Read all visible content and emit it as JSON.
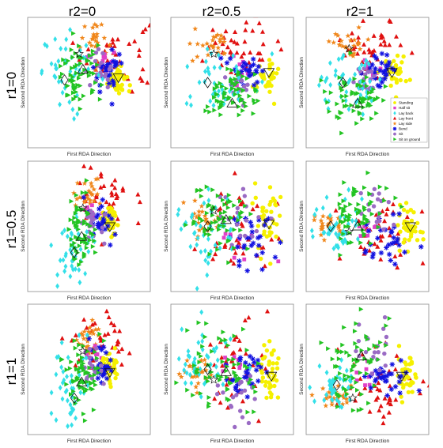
{
  "chart_data": {
    "type": "scatter",
    "column_titles": [
      "r2=0",
      "r2=0.5",
      "r2=1"
    ],
    "row_titles": [
      "r1=0",
      "r1=0.5",
      "r1=1"
    ],
    "xlabel": "First RDA Direction",
    "ylabel": "Second RDA Direction",
    "grid": false,
    "legend": {
      "panel": "row 1, column 3",
      "placement": "right",
      "entries": [
        {
          "label": "Standing",
          "color": "#f5f000",
          "marker": "circle"
        },
        {
          "label": "Half sit",
          "color": "#e040c8",
          "marker": "square"
        },
        {
          "label": "Lay back",
          "color": "#33e0e8",
          "marker": "diamond"
        },
        {
          "label": "Lay front",
          "color": "#e01010",
          "marker": "triangle-up"
        },
        {
          "label": "Lay side",
          "color": "#f0861a",
          "marker": "star"
        },
        {
          "label": "Bend",
          "color": "#1010e0",
          "marker": "asterisk"
        },
        {
          "label": "Sit",
          "color": "#9a6bc4",
          "marker": "circle"
        },
        {
          "label": "Sit on ground",
          "color": "#22c422",
          "marker": "triangle-right"
        }
      ]
    },
    "axis_range": {
      "x": [
        0,
        1
      ],
      "y": [
        0,
        1
      ]
    },
    "note_on_values": "Axes carry no printed ticks; cluster centroid values below are approximate positions within each panel on a 0-1 scale.",
    "panels": [
      {
        "r1": "0",
        "r2": "0",
        "clusters": [
          {
            "class": "Standing",
            "cx": 0.73,
            "cy": 0.53,
            "sx": 0.04,
            "sy": 0.06,
            "n": 40
          },
          {
            "class": "Half sit",
            "cx": 0.62,
            "cy": 0.68,
            "sx": 0.04,
            "sy": 0.04,
            "n": 8
          },
          {
            "class": "Lay back",
            "cx": 0.36,
            "cy": 0.58,
            "sx": 0.12,
            "sy": 0.14,
            "n": 45
          },
          {
            "class": "Lay front",
            "cx": 0.72,
            "cy": 0.72,
            "sx": 0.14,
            "sy": 0.14,
            "n": 40
          },
          {
            "class": "Lay side",
            "cx": 0.55,
            "cy": 0.83,
            "sx": 0.07,
            "sy": 0.08,
            "n": 26
          },
          {
            "class": "Bend",
            "cx": 0.66,
            "cy": 0.58,
            "sx": 0.06,
            "sy": 0.08,
            "n": 30
          },
          {
            "class": "Sit",
            "cx": 0.57,
            "cy": 0.6,
            "sx": 0.06,
            "sy": 0.07,
            "n": 20
          },
          {
            "class": "Sit on ground",
            "cx": 0.42,
            "cy": 0.55,
            "sx": 0.09,
            "sy": 0.11,
            "n": 65
          }
        ],
        "centroids": {
          "Standing": [
            0.74,
            0.54
          ],
          "Lay back": [
            0.3,
            0.52
          ],
          "Sit on ground": [
            0.45,
            0.6
          ],
          "Lay side": [
            0.42,
            0.72
          ]
        }
      },
      {
        "r1": "0",
        "r2": "0.5",
        "clusters": [
          {
            "class": "Standing",
            "cx": 0.78,
            "cy": 0.55,
            "sx": 0.05,
            "sy": 0.06,
            "n": 40
          },
          {
            "class": "Half sit",
            "cx": 0.55,
            "cy": 0.6,
            "sx": 0.05,
            "sy": 0.05,
            "n": 8
          },
          {
            "class": "Lay back",
            "cx": 0.4,
            "cy": 0.52,
            "sx": 0.14,
            "sy": 0.12,
            "n": 45
          },
          {
            "class": "Lay front",
            "cx": 0.6,
            "cy": 0.78,
            "sx": 0.16,
            "sy": 0.1,
            "n": 40
          },
          {
            "class": "Lay side",
            "cx": 0.35,
            "cy": 0.78,
            "sx": 0.08,
            "sy": 0.06,
            "n": 26
          },
          {
            "class": "Bend",
            "cx": 0.62,
            "cy": 0.58,
            "sx": 0.08,
            "sy": 0.06,
            "n": 30
          },
          {
            "class": "Sit",
            "cx": 0.55,
            "cy": 0.48,
            "sx": 0.06,
            "sy": 0.06,
            "n": 20
          },
          {
            "class": "Sit on ground",
            "cx": 0.46,
            "cy": 0.4,
            "sx": 0.12,
            "sy": 0.1,
            "n": 65
          }
        ],
        "centroids": {
          "Standing": [
            0.8,
            0.58
          ],
          "Lay back": [
            0.3,
            0.5
          ],
          "Sit on ground": [
            0.5,
            0.34
          ],
          "Lay side": [
            0.35,
            0.72
          ]
        }
      },
      {
        "r1": "0",
        "r2": "1",
        "clusters": [
          {
            "class": "Standing",
            "cx": 0.72,
            "cy": 0.58,
            "sx": 0.05,
            "sy": 0.06,
            "n": 40
          },
          {
            "class": "Half sit",
            "cx": 0.55,
            "cy": 0.58,
            "sx": 0.05,
            "sy": 0.05,
            "n": 8
          },
          {
            "class": "Lay back",
            "cx": 0.35,
            "cy": 0.5,
            "sx": 0.13,
            "sy": 0.12,
            "n": 45
          },
          {
            "class": "Lay front",
            "cx": 0.55,
            "cy": 0.78,
            "sx": 0.14,
            "sy": 0.1,
            "n": 40
          },
          {
            "class": "Lay side",
            "cx": 0.35,
            "cy": 0.8,
            "sx": 0.07,
            "sy": 0.06,
            "n": 26
          },
          {
            "class": "Bend",
            "cx": 0.6,
            "cy": 0.6,
            "sx": 0.07,
            "sy": 0.06,
            "n": 30
          },
          {
            "class": "Sit",
            "cx": 0.5,
            "cy": 0.5,
            "sx": 0.06,
            "sy": 0.06,
            "n": 20
          },
          {
            "class": "Sit on ground",
            "cx": 0.42,
            "cy": 0.38,
            "sx": 0.11,
            "sy": 0.1,
            "n": 65
          }
        ],
        "centroids": {
          "Standing": [
            0.7,
            0.58
          ],
          "Lay back": [
            0.3,
            0.5
          ],
          "Sit on ground": [
            0.42,
            0.34
          ],
          "Lay side": [
            0.35,
            0.76
          ]
        }
      },
      {
        "r1": "0.5",
        "r2": "0",
        "clusters": [
          {
            "class": "Standing",
            "cx": 0.67,
            "cy": 0.52,
            "sx": 0.04,
            "sy": 0.07,
            "n": 40
          },
          {
            "class": "Half sit",
            "cx": 0.55,
            "cy": 0.62,
            "sx": 0.04,
            "sy": 0.04,
            "n": 8
          },
          {
            "class": "Lay back",
            "cx": 0.38,
            "cy": 0.35,
            "sx": 0.08,
            "sy": 0.15,
            "n": 45
          },
          {
            "class": "Lay front",
            "cx": 0.62,
            "cy": 0.72,
            "sx": 0.12,
            "sy": 0.14,
            "n": 40
          },
          {
            "class": "Lay side",
            "cx": 0.5,
            "cy": 0.75,
            "sx": 0.06,
            "sy": 0.07,
            "n": 26
          },
          {
            "class": "Bend",
            "cx": 0.6,
            "cy": 0.55,
            "sx": 0.05,
            "sy": 0.08,
            "n": 30
          },
          {
            "class": "Sit",
            "cx": 0.52,
            "cy": 0.52,
            "sx": 0.05,
            "sy": 0.07,
            "n": 20
          },
          {
            "class": "Sit on ground",
            "cx": 0.44,
            "cy": 0.48,
            "sx": 0.07,
            "sy": 0.14,
            "n": 65
          }
        ],
        "centroids": {
          "Standing": [
            0.67,
            0.5
          ],
          "Lay back": [
            0.38,
            0.3
          ],
          "Sit on ground": [
            0.44,
            0.42
          ],
          "Lay side": [
            0.45,
            0.64
          ]
        }
      },
      {
        "r1": "0.5",
        "r2": "0.5",
        "clusters": [
          {
            "class": "Standing",
            "cx": 0.8,
            "cy": 0.55,
            "sx": 0.05,
            "sy": 0.12,
            "n": 40
          },
          {
            "class": "Half sit",
            "cx": 0.55,
            "cy": 0.35,
            "sx": 0.12,
            "sy": 0.1,
            "n": 10
          },
          {
            "class": "Lay back",
            "cx": 0.3,
            "cy": 0.45,
            "sx": 0.12,
            "sy": 0.16,
            "n": 45
          },
          {
            "class": "Lay front",
            "cx": 0.55,
            "cy": 0.5,
            "sx": 0.16,
            "sy": 0.2,
            "n": 40
          },
          {
            "class": "Lay side",
            "cx": 0.25,
            "cy": 0.55,
            "sx": 0.07,
            "sy": 0.07,
            "n": 26
          },
          {
            "class": "Bend",
            "cx": 0.65,
            "cy": 0.38,
            "sx": 0.09,
            "sy": 0.12,
            "n": 30
          },
          {
            "class": "Sit",
            "cx": 0.55,
            "cy": 0.6,
            "sx": 0.08,
            "sy": 0.1,
            "n": 20
          },
          {
            "class": "Sit on ground",
            "cx": 0.42,
            "cy": 0.58,
            "sx": 0.12,
            "sy": 0.14,
            "n": 65
          }
        ],
        "centroids": {
          "Standing": [
            0.8,
            0.52
          ],
          "Lay back": [
            0.3,
            0.5
          ],
          "Sit on ground": [
            0.45,
            0.55
          ],
          "Lay side": [
            0.35,
            0.62
          ]
        }
      },
      {
        "r1": "0.5",
        "r2": "1",
        "clusters": [
          {
            "class": "Standing",
            "cx": 0.85,
            "cy": 0.5,
            "sx": 0.05,
            "sy": 0.1,
            "n": 40
          },
          {
            "class": "Half sit",
            "cx": 0.48,
            "cy": 0.48,
            "sx": 0.05,
            "sy": 0.05,
            "n": 8
          },
          {
            "class": "Lay back",
            "cx": 0.25,
            "cy": 0.5,
            "sx": 0.1,
            "sy": 0.12,
            "n": 45
          },
          {
            "class": "Lay front",
            "cx": 0.6,
            "cy": 0.45,
            "sx": 0.15,
            "sy": 0.15,
            "n": 40
          },
          {
            "class": "Lay side",
            "cx": 0.2,
            "cy": 0.5,
            "sx": 0.06,
            "sy": 0.06,
            "n": 26
          },
          {
            "class": "Bend",
            "cx": 0.62,
            "cy": 0.4,
            "sx": 0.1,
            "sy": 0.1,
            "n": 30
          },
          {
            "class": "Sit",
            "cx": 0.55,
            "cy": 0.62,
            "sx": 0.07,
            "sy": 0.1,
            "n": 20
          },
          {
            "class": "Sit on ground",
            "cx": 0.42,
            "cy": 0.6,
            "sx": 0.12,
            "sy": 0.14,
            "n": 65
          }
        ],
        "centroids": {
          "Standing": [
            0.85,
            0.5
          ],
          "Lay back": [
            0.2,
            0.5
          ],
          "Sit on ground": [
            0.42,
            0.5
          ],
          "Lay side": [
            0.35,
            0.46
          ]
        }
      },
      {
        "r1": "1",
        "r2": "0",
        "clusters": [
          {
            "class": "Standing",
            "cx": 0.67,
            "cy": 0.5,
            "sx": 0.04,
            "sy": 0.07,
            "n": 40
          },
          {
            "class": "Half sit",
            "cx": 0.55,
            "cy": 0.62,
            "sx": 0.04,
            "sy": 0.04,
            "n": 8
          },
          {
            "class": "Lay back",
            "cx": 0.36,
            "cy": 0.35,
            "sx": 0.08,
            "sy": 0.16,
            "n": 45
          },
          {
            "class": "Lay front",
            "cx": 0.62,
            "cy": 0.72,
            "sx": 0.12,
            "sy": 0.14,
            "n": 40
          },
          {
            "class": "Lay side",
            "cx": 0.5,
            "cy": 0.75,
            "sx": 0.06,
            "sy": 0.07,
            "n": 26
          },
          {
            "class": "Bend",
            "cx": 0.6,
            "cy": 0.55,
            "sx": 0.05,
            "sy": 0.08,
            "n": 30
          },
          {
            "class": "Sit",
            "cx": 0.52,
            "cy": 0.52,
            "sx": 0.05,
            "sy": 0.07,
            "n": 20
          },
          {
            "class": "Sit on ground",
            "cx": 0.44,
            "cy": 0.46,
            "sx": 0.07,
            "sy": 0.14,
            "n": 65
          }
        ],
        "centroids": {
          "Standing": [
            0.67,
            0.48
          ],
          "Lay back": [
            0.38,
            0.28
          ],
          "Sit on ground": [
            0.44,
            0.4
          ],
          "Lay side": [
            0.45,
            0.64
          ]
        }
      },
      {
        "r1": "1",
        "r2": "0.5",
        "clusters": [
          {
            "class": "Standing",
            "cx": 0.8,
            "cy": 0.48,
            "sx": 0.05,
            "sy": 0.12,
            "n": 40
          },
          {
            "class": "Half sit",
            "cx": 0.5,
            "cy": 0.55,
            "sx": 0.05,
            "sy": 0.05,
            "n": 8
          },
          {
            "class": "Lay back",
            "cx": 0.28,
            "cy": 0.55,
            "sx": 0.12,
            "sy": 0.15,
            "n": 45
          },
          {
            "class": "Lay front",
            "cx": 0.55,
            "cy": 0.5,
            "sx": 0.15,
            "sy": 0.18,
            "n": 40
          },
          {
            "class": "Lay side",
            "cx": 0.22,
            "cy": 0.45,
            "sx": 0.06,
            "sy": 0.07,
            "n": 26
          },
          {
            "class": "Bend",
            "cx": 0.62,
            "cy": 0.45,
            "sx": 0.09,
            "sy": 0.1,
            "n": 30
          },
          {
            "class": "Sit",
            "cx": 0.55,
            "cy": 0.35,
            "sx": 0.08,
            "sy": 0.12,
            "n": 20
          },
          {
            "class": "Sit on ground",
            "cx": 0.42,
            "cy": 0.5,
            "sx": 0.14,
            "sy": 0.16,
            "n": 65
          }
        ],
        "centroids": {
          "Standing": [
            0.82,
            0.45
          ],
          "Lay back": [
            0.3,
            0.5
          ],
          "Sit on ground": [
            0.45,
            0.48
          ],
          "Lay side": [
            0.35,
            0.42
          ]
        }
      },
      {
        "r1": "1",
        "r2": "1",
        "clusters": [
          {
            "class": "Standing",
            "cx": 0.82,
            "cy": 0.45,
            "sx": 0.05,
            "sy": 0.08,
            "n": 40
          },
          {
            "class": "Half sit",
            "cx": 0.5,
            "cy": 0.5,
            "sx": 0.05,
            "sy": 0.05,
            "n": 8
          },
          {
            "class": "Lay back",
            "cx": 0.25,
            "cy": 0.38,
            "sx": 0.08,
            "sy": 0.08,
            "n": 45
          },
          {
            "class": "Lay front",
            "cx": 0.62,
            "cy": 0.35,
            "sx": 0.15,
            "sy": 0.15,
            "n": 40
          },
          {
            "class": "Lay side",
            "cx": 0.25,
            "cy": 0.28,
            "sx": 0.07,
            "sy": 0.06,
            "n": 26
          },
          {
            "class": "Bend",
            "cx": 0.65,
            "cy": 0.45,
            "sx": 0.08,
            "sy": 0.08,
            "n": 30
          },
          {
            "class": "Sit",
            "cx": 0.55,
            "cy": 0.65,
            "sx": 0.07,
            "sy": 0.1,
            "n": 20
          },
          {
            "class": "Sit on ground",
            "cx": 0.42,
            "cy": 0.55,
            "sx": 0.12,
            "sy": 0.16,
            "n": 65
          }
        ],
        "centroids": {
          "Standing": [
            0.78,
            0.45
          ],
          "Lay back": [
            0.25,
            0.38
          ],
          "Sit on ground": [
            0.45,
            0.6
          ],
          "Lay side": [
            0.38,
            0.28
          ]
        }
      }
    ]
  }
}
